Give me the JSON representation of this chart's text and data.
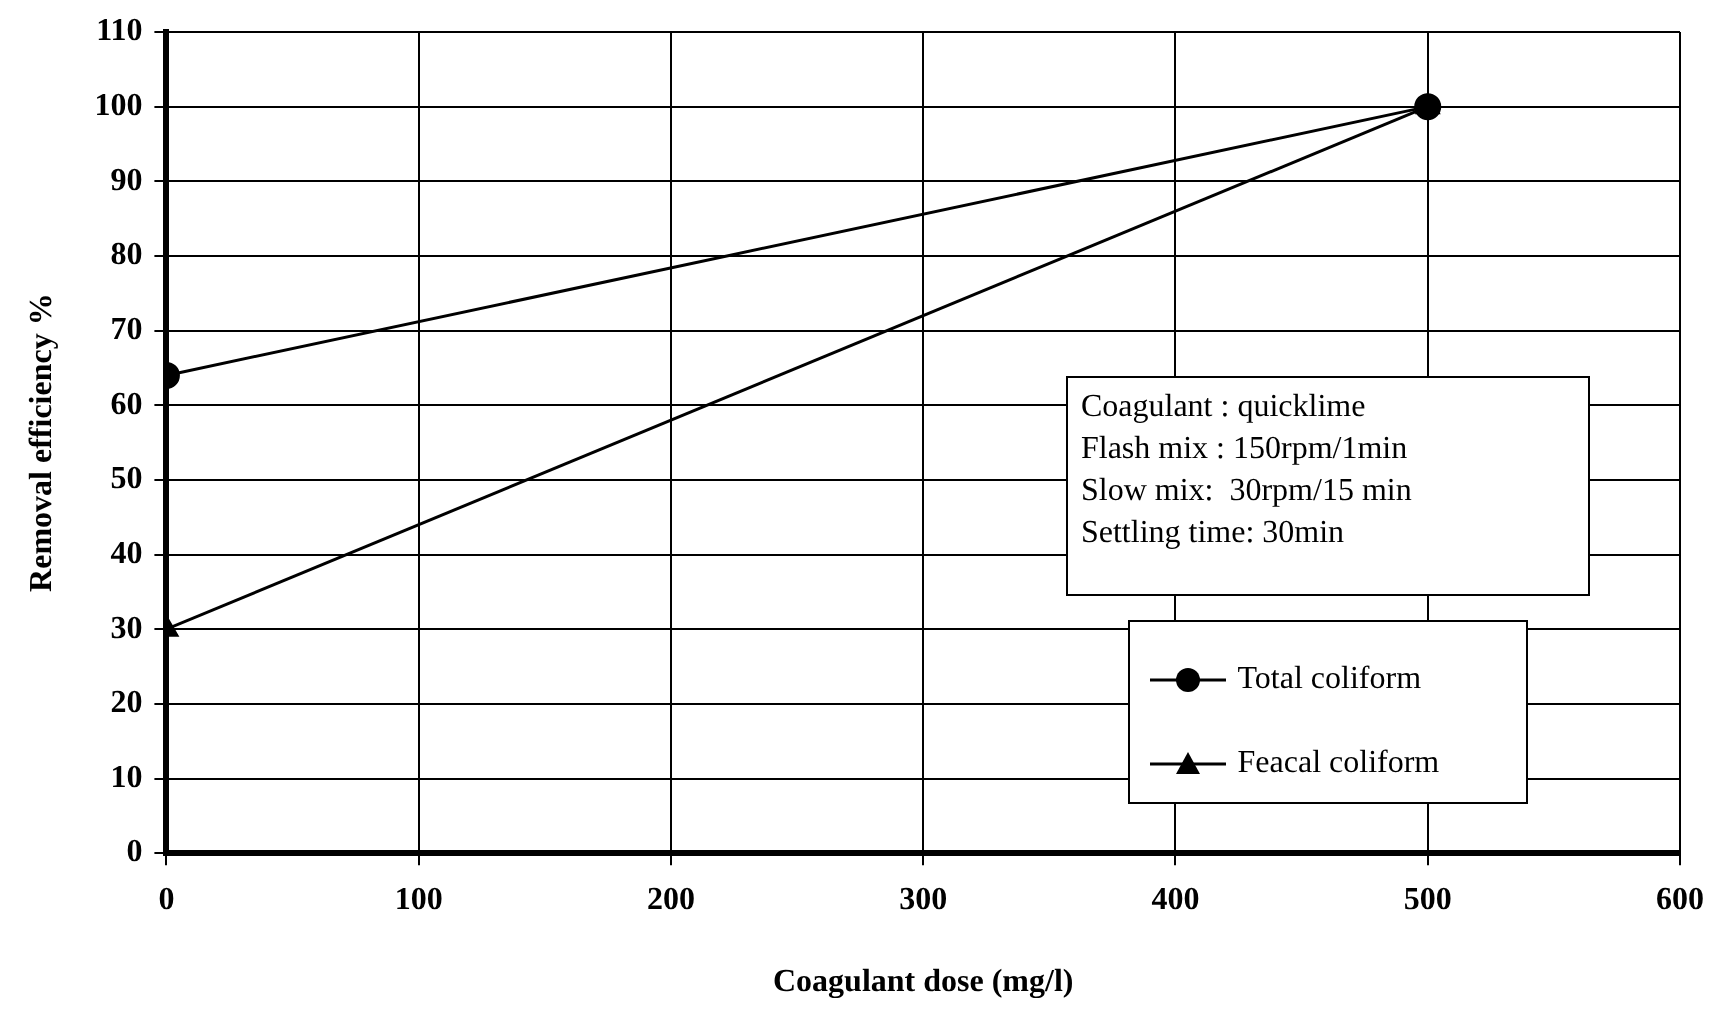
{
  "chart_data": {
    "type": "line",
    "xlabel": "Coagulant dose (mg/l)",
    "ylabel": "Removal efficiency %",
    "x": [
      0,
      500
    ],
    "series": [
      {
        "name": "Total coliform",
        "color": "#000000",
        "values": [
          64,
          100
        ],
        "marker": "circle"
      },
      {
        "name": "Feacal coliform",
        "color": "#000000",
        "values": [
          30,
          100
        ],
        "marker": "triangle"
      }
    ],
    "xlim": [
      0,
      600
    ],
    "xticks": [
      0,
      100,
      200,
      300,
      400,
      500,
      600
    ],
    "ylim": [
      0,
      110
    ],
    "yticks": [
      0,
      10,
      20,
      30,
      40,
      50,
      60,
      70,
      80,
      90,
      100,
      110
    ],
    "grid": true,
    "legend": "bottom right",
    "line_style": "solid",
    "annotations": [
      "Coagulant : quicklime",
      "Flash mix : 150rpm/1min",
      "Slow mix:  30rpm/15 min",
      "Settling time: 30min"
    ]
  }
}
